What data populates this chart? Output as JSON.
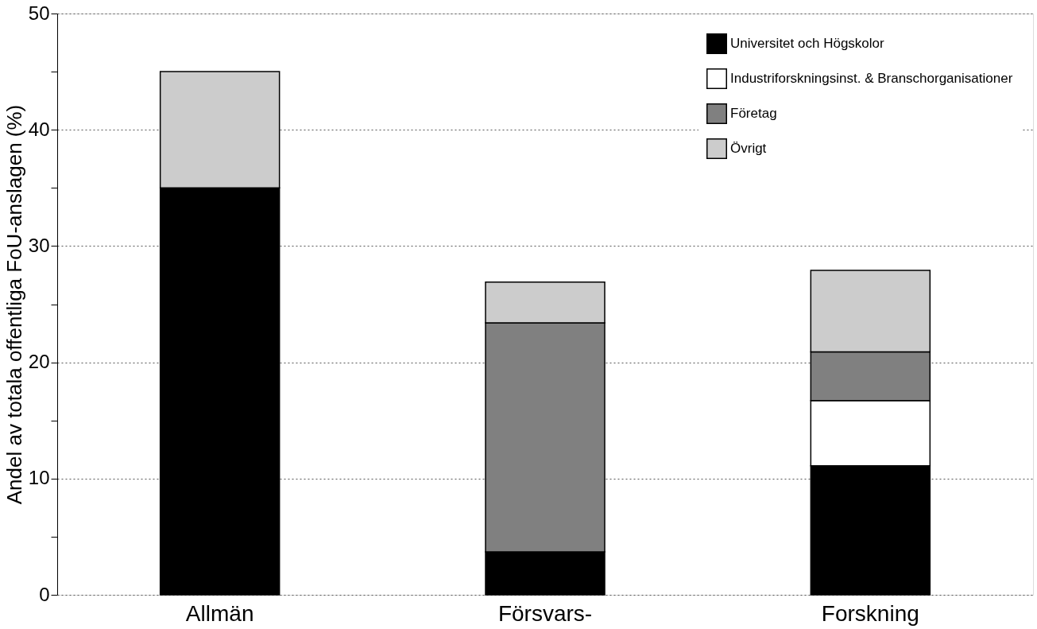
{
  "chart_data": {
    "type": "bar",
    "stacked": true,
    "ylabel": "Andel av totala offentliga FoU-anslagen (%)",
    "categories": [
      "Allmän",
      "Försvars-",
      "Forskning"
    ],
    "series": [
      {
        "name": "Universitet och Högskolor",
        "color": "#000000",
        "values": [
          35.0,
          3.7,
          11.1
        ]
      },
      {
        "name": "Industriforskningsinst. & Branschorganisationer",
        "color": "#ffffff",
        "values": [
          null,
          null,
          5.6
        ]
      },
      {
        "name": "Företag",
        "color": "#808080",
        "values": [
          null,
          19.7,
          4.2
        ]
      },
      {
        "name": "Övrigt",
        "color": "#cccccc",
        "values": [
          10.0,
          3.5,
          7.0
        ]
      }
    ],
    "ylim": [
      0,
      50
    ],
    "yticks": [
      0,
      {
        "value": 5,
        "label": null
      },
      10,
      {
        "value": 15,
        "label": null
      },
      20,
      {
        "value": 25,
        "label": null
      },
      30,
      {
        "value": 35,
        "label": null
      },
      40,
      {
        "value": 45,
        "label": null
      },
      50
    ],
    "grid": "y",
    "legend": "top right"
  }
}
